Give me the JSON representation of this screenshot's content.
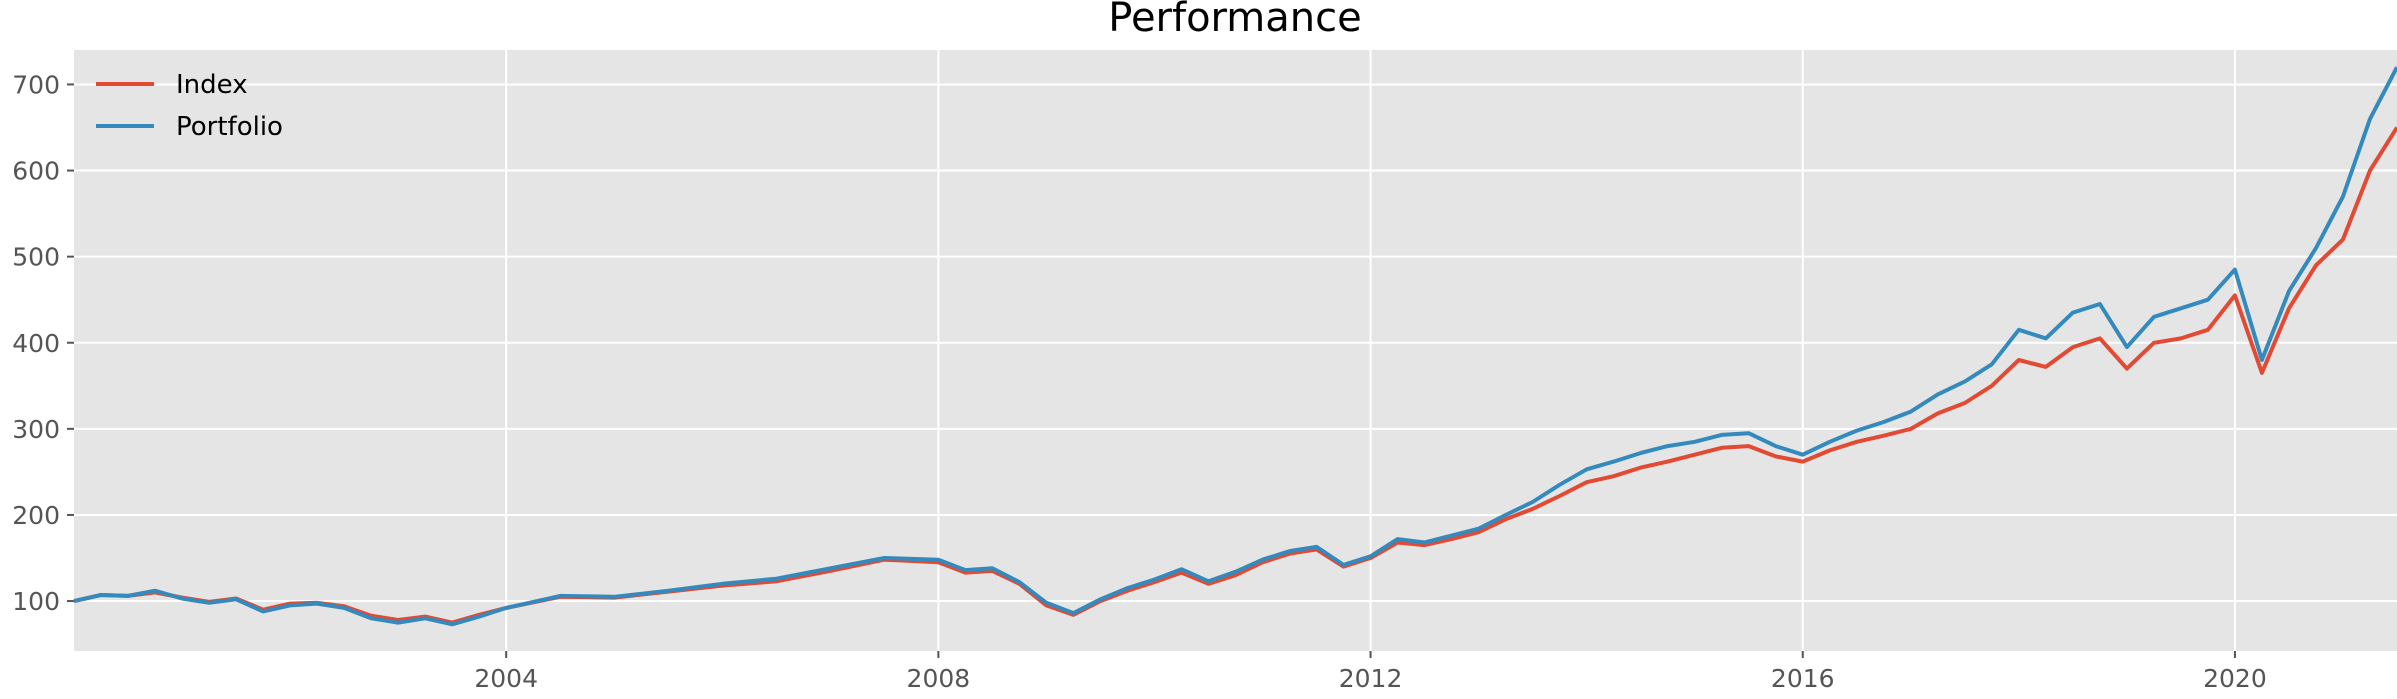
{
  "chart_data": {
    "type": "line",
    "title": "Performance",
    "xlabel": "",
    "ylabel": "",
    "xlim": [
      2000.0,
      2021.5
    ],
    "ylim": [
      42,
      740
    ],
    "x_ticks": [
      2004,
      2008,
      2012,
      2016,
      2020
    ],
    "x_tick_labels": [
      "2004",
      "2008",
      "2012",
      "2016",
      "2020"
    ],
    "y_ticks": [
      100,
      200,
      300,
      400,
      500,
      600,
      700
    ],
    "y_tick_labels": [
      "100",
      "200",
      "300",
      "400",
      "500",
      "600",
      "700"
    ],
    "grid": true,
    "legend_position": "top-left",
    "background": "#e5e5e5",
    "grid_color": "#ffffff",
    "series": [
      {
        "name": "Index",
        "color": "#e24a33",
        "points": [
          [
            2000.0,
            100
          ],
          [
            2000.25,
            107
          ],
          [
            2000.5,
            106
          ],
          [
            2000.75,
            110
          ],
          [
            2001.0,
            104
          ],
          [
            2001.25,
            99
          ],
          [
            2001.5,
            103
          ],
          [
            2001.75,
            90
          ],
          [
            2002.0,
            97
          ],
          [
            2002.25,
            98
          ],
          [
            2002.5,
            94
          ],
          [
            2002.75,
            83
          ],
          [
            2003.0,
            78
          ],
          [
            2003.25,
            82
          ],
          [
            2003.5,
            75
          ],
          [
            2003.75,
            84
          ],
          [
            2004.0,
            92
          ],
          [
            2004.5,
            105
          ],
          [
            2005.0,
            104
          ],
          [
            2005.5,
            111
          ],
          [
            2006.0,
            118
          ],
          [
            2006.5,
            123
          ],
          [
            2007.0,
            135
          ],
          [
            2007.5,
            148
          ],
          [
            2008.0,
            145
          ],
          [
            2008.25,
            133
          ],
          [
            2008.5,
            135
          ],
          [
            2008.75,
            120
          ],
          [
            2009.0,
            95
          ],
          [
            2009.25,
            84
          ],
          [
            2009.5,
            100
          ],
          [
            2009.75,
            112
          ],
          [
            2010.0,
            122
          ],
          [
            2010.25,
            133
          ],
          [
            2010.5,
            120
          ],
          [
            2010.75,
            130
          ],
          [
            2011.0,
            145
          ],
          [
            2011.25,
            155
          ],
          [
            2011.5,
            160
          ],
          [
            2011.75,
            140
          ],
          [
            2012.0,
            150
          ],
          [
            2012.25,
            168
          ],
          [
            2012.5,
            165
          ],
          [
            2012.75,
            172
          ],
          [
            2013.0,
            180
          ],
          [
            2013.25,
            195
          ],
          [
            2013.5,
            207
          ],
          [
            2013.75,
            222
          ],
          [
            2014.0,
            238
          ],
          [
            2014.25,
            245
          ],
          [
            2014.5,
            255
          ],
          [
            2014.75,
            262
          ],
          [
            2015.0,
            270
          ],
          [
            2015.25,
            278
          ],
          [
            2015.5,
            280
          ],
          [
            2015.75,
            268
          ],
          [
            2016.0,
            262
          ],
          [
            2016.25,
            275
          ],
          [
            2016.5,
            285
          ],
          [
            2016.75,
            292
          ],
          [
            2017.0,
            300
          ],
          [
            2017.25,
            318
          ],
          [
            2017.5,
            330
          ],
          [
            2017.75,
            350
          ],
          [
            2018.0,
            380
          ],
          [
            2018.25,
            372
          ],
          [
            2018.5,
            395
          ],
          [
            2018.75,
            405
          ],
          [
            2019.0,
            370
          ],
          [
            2019.25,
            400
          ],
          [
            2019.5,
            405
          ],
          [
            2019.75,
            415
          ],
          [
            2020.0,
            455
          ],
          [
            2020.25,
            365
          ],
          [
            2020.5,
            440
          ],
          [
            2020.75,
            490
          ],
          [
            2021.0,
            520
          ],
          [
            2021.25,
            600
          ],
          [
            2021.5,
            650
          ]
        ]
      },
      {
        "name": "Portfolio",
        "color": "#348abd",
        "points": [
          [
            2000.0,
            100
          ],
          [
            2000.25,
            107
          ],
          [
            2000.5,
            106
          ],
          [
            2000.75,
            112
          ],
          [
            2001.0,
            103
          ],
          [
            2001.25,
            98
          ],
          [
            2001.5,
            102
          ],
          [
            2001.75,
            88
          ],
          [
            2002.0,
            95
          ],
          [
            2002.25,
            97
          ],
          [
            2002.5,
            92
          ],
          [
            2002.75,
            80
          ],
          [
            2003.0,
            75
          ],
          [
            2003.25,
            80
          ],
          [
            2003.5,
            73
          ],
          [
            2003.75,
            82
          ],
          [
            2004.0,
            92
          ],
          [
            2004.5,
            106
          ],
          [
            2005.0,
            105
          ],
          [
            2005.5,
            112
          ],
          [
            2006.0,
            120
          ],
          [
            2006.5,
            126
          ],
          [
            2007.0,
            138
          ],
          [
            2007.5,
            150
          ],
          [
            2008.0,
            148
          ],
          [
            2008.25,
            136
          ],
          [
            2008.5,
            138
          ],
          [
            2008.75,
            122
          ],
          [
            2009.0,
            98
          ],
          [
            2009.25,
            86
          ],
          [
            2009.5,
            102
          ],
          [
            2009.75,
            115
          ],
          [
            2010.0,
            125
          ],
          [
            2010.25,
            137
          ],
          [
            2010.5,
            123
          ],
          [
            2010.75,
            134
          ],
          [
            2011.0,
            148
          ],
          [
            2011.25,
            158
          ],
          [
            2011.5,
            163
          ],
          [
            2011.75,
            142
          ],
          [
            2012.0,
            152
          ],
          [
            2012.25,
            172
          ],
          [
            2012.5,
            168
          ],
          [
            2012.75,
            176
          ],
          [
            2013.0,
            184
          ],
          [
            2013.25,
            200
          ],
          [
            2013.5,
            215
          ],
          [
            2013.75,
            235
          ],
          [
            2014.0,
            253
          ],
          [
            2014.25,
            262
          ],
          [
            2014.5,
            272
          ],
          [
            2014.75,
            280
          ],
          [
            2015.0,
            285
          ],
          [
            2015.25,
            293
          ],
          [
            2015.5,
            295
          ],
          [
            2015.75,
            280
          ],
          [
            2016.0,
            270
          ],
          [
            2016.25,
            285
          ],
          [
            2016.5,
            298
          ],
          [
            2016.75,
            308
          ],
          [
            2017.0,
            320
          ],
          [
            2017.25,
            340
          ],
          [
            2017.5,
            355
          ],
          [
            2017.75,
            375
          ],
          [
            2018.0,
            415
          ],
          [
            2018.25,
            405
          ],
          [
            2018.5,
            435
          ],
          [
            2018.75,
            445
          ],
          [
            2019.0,
            395
          ],
          [
            2019.25,
            430
          ],
          [
            2019.5,
            440
          ],
          [
            2019.75,
            450
          ],
          [
            2020.0,
            485
          ],
          [
            2020.25,
            380
          ],
          [
            2020.5,
            460
          ],
          [
            2020.75,
            510
          ],
          [
            2021.0,
            570
          ],
          [
            2021.25,
            660
          ],
          [
            2021.5,
            720
          ]
        ]
      }
    ]
  }
}
